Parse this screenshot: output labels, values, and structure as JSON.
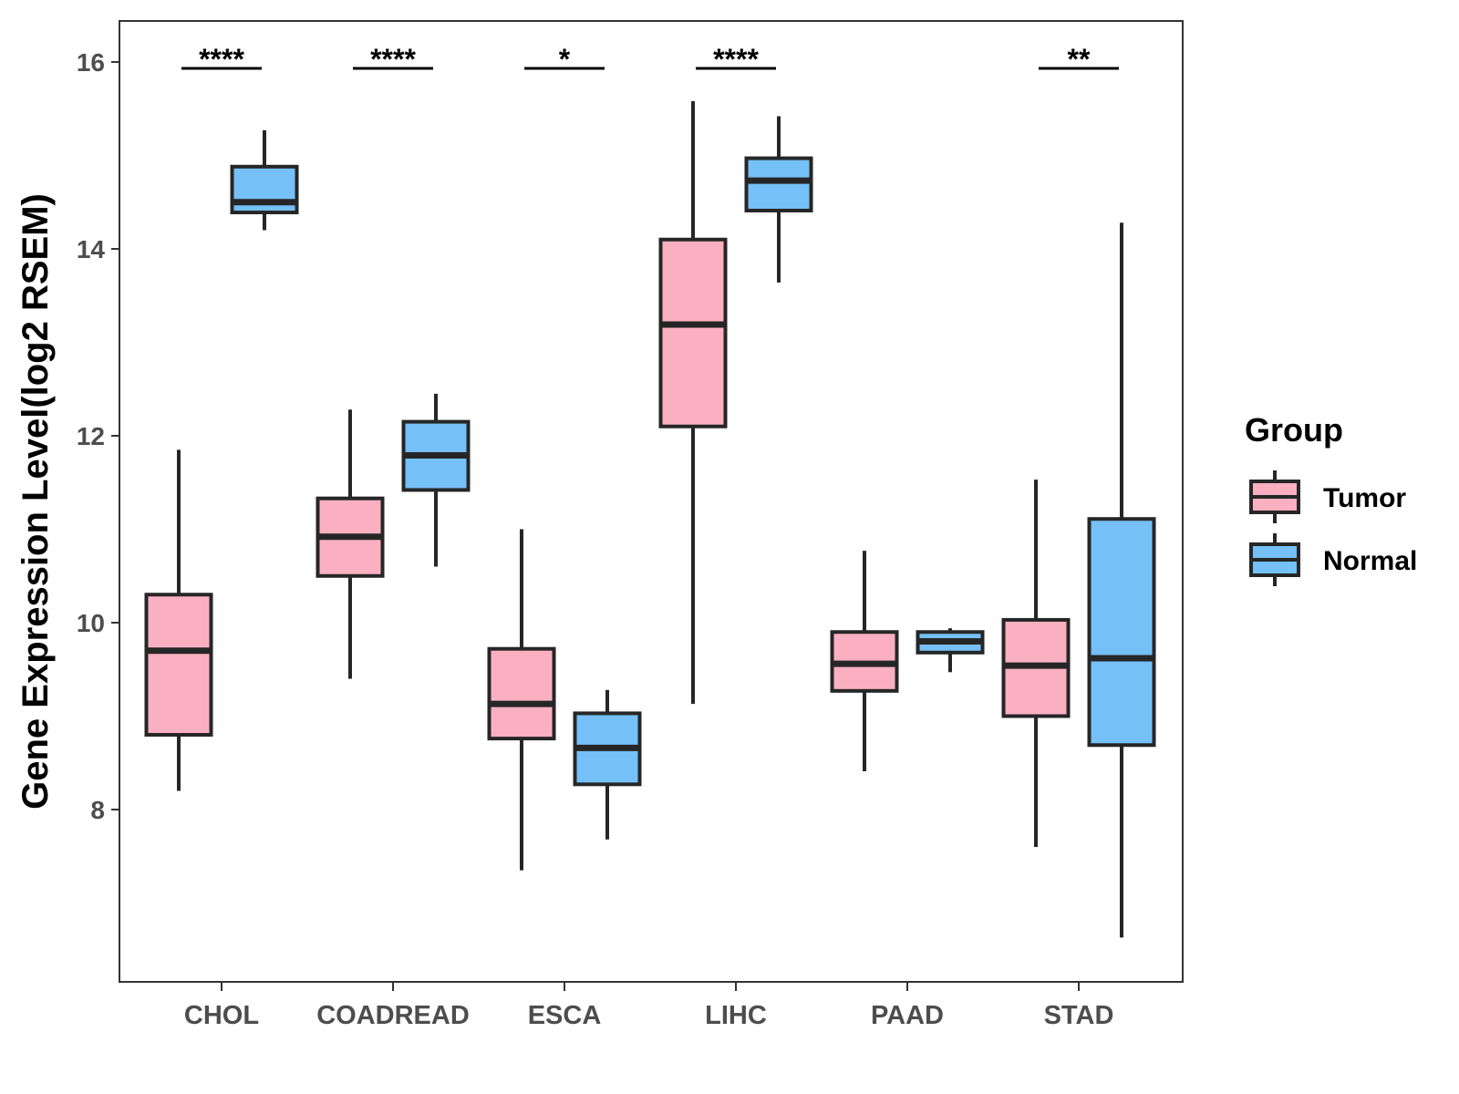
{
  "chart_data": {
    "type": "boxplot",
    "title": "",
    "xlabel": "",
    "ylabel": "Gene Expression Level(log2 RSEM)",
    "ylim": [
      6.2,
      16.45
    ],
    "y_ticks": [
      "8",
      "10",
      "12",
      "14",
      "16"
    ],
    "categories": [
      "CHOL",
      "COADREAD",
      "ESCA",
      "LIHC",
      "PAAD",
      "STAD"
    ],
    "series": [
      {
        "name": "Tumor",
        "color": "#FBB0C2",
        "boxes": [
          {
            "min": 8.2,
            "q1": 8.8,
            "median": 9.7,
            "q3": 10.3,
            "max": 11.85
          },
          {
            "min": 9.4,
            "q1": 10.5,
            "median": 10.92,
            "q3": 11.33,
            "max": 12.28
          },
          {
            "min": 7.35,
            "q1": 8.76,
            "median": 9.13,
            "q3": 9.72,
            "max": 11.0
          },
          {
            "min": 9.13,
            "q1": 12.1,
            "median": 13.19,
            "q3": 14.1,
            "max": 15.58
          },
          {
            "min": 8.41,
            "q1": 9.27,
            "median": 9.56,
            "q3": 9.9,
            "max": 10.77
          },
          {
            "min": 7.6,
            "q1": 9.0,
            "median": 9.54,
            "q3": 10.03,
            "max": 11.53
          }
        ]
      },
      {
        "name": "Normal",
        "color": "#75C0F6",
        "boxes": [
          {
            "min": 14.2,
            "q1": 14.39,
            "median": 14.5,
            "q3": 14.88,
            "max": 15.27
          },
          {
            "min": 10.6,
            "q1": 11.42,
            "median": 11.79,
            "q3": 12.15,
            "max": 12.45
          },
          {
            "min": 7.68,
            "q1": 8.27,
            "median": 8.66,
            "q3": 9.03,
            "max": 9.28
          },
          {
            "min": 13.64,
            "q1": 14.41,
            "median": 14.73,
            "q3": 14.97,
            "max": 15.42
          },
          {
            "min": 9.47,
            "q1": 9.68,
            "median": 9.8,
            "q3": 9.9,
            "max": 9.94
          },
          {
            "min": 6.63,
            "q1": 8.69,
            "median": 9.62,
            "q3": 11.11,
            "max": 14.28
          }
        ]
      }
    ],
    "significance": [
      "****",
      "****",
      "*",
      "****",
      "",
      "**"
    ],
    "legend": {
      "title": "Group",
      "position": "right",
      "entries": [
        "Tumor",
        "Normal"
      ]
    }
  }
}
